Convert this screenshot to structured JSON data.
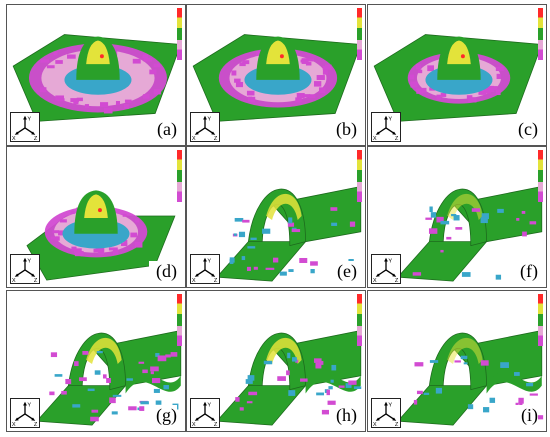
{
  "figure": {
    "panels": [
      {
        "label": "(a)",
        "shape": "dome",
        "coverage": "wide"
      },
      {
        "label": "(b)",
        "shape": "dome",
        "coverage": "medium"
      },
      {
        "label": "(c)",
        "shape": "dome",
        "coverage": "narrow"
      },
      {
        "label": "(d)",
        "shape": "dome-crop",
        "coverage": "narrow"
      },
      {
        "label": "(e)",
        "shape": "arch",
        "coverage": "medium"
      },
      {
        "label": "(f)",
        "shape": "arch",
        "coverage": "narrow"
      },
      {
        "label": "(g)",
        "shape": "arch-wave",
        "coverage": "wide"
      },
      {
        "label": "(h)",
        "shape": "arch-wave",
        "coverage": "medium"
      },
      {
        "label": "(i)",
        "shape": "arch-wave",
        "coverage": "narrow"
      }
    ],
    "axis_labels": {
      "x": "X",
      "y": "Y",
      "z": "Z"
    },
    "colors": {
      "base": "#2aa02a",
      "thin": "#d24bd2",
      "safe": "#e6a9d6",
      "risk": "#e3e33a",
      "wrinkle": "#39a6c9",
      "crack": "#ff2a2a"
    }
  }
}
